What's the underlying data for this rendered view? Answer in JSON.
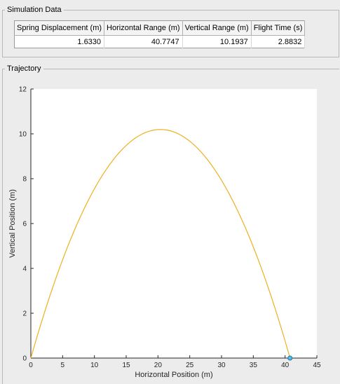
{
  "sim_panel": {
    "title": "Simulation Data"
  },
  "table": {
    "headers": [
      "Spring Displacement (m)",
      "Horizontal Range (m)",
      "Vertical Range (m)",
      "Flight Time (s)"
    ],
    "row": [
      "1.6330",
      "40.7747",
      "10.1937",
      "2.8832"
    ]
  },
  "traj_panel": {
    "title": "Trajectory"
  },
  "chart_data": {
    "type": "line",
    "xlabel": "Horizontal Position (m)",
    "ylabel": "Vertical Position (m)",
    "xlim": [
      0,
      45
    ],
    "ylim": [
      0,
      12
    ],
    "x_ticks": [
      0,
      5,
      10,
      15,
      20,
      25,
      30,
      35,
      40,
      45
    ],
    "y_ticks": [
      0,
      2,
      4,
      6,
      8,
      10,
      12
    ],
    "grid": false,
    "series": [
      {
        "color": "#edb120",
        "shape": "parabola",
        "range": 40.7747,
        "peak_height": 10.1937,
        "start": [
          0,
          0
        ]
      }
    ],
    "marker": {
      "x": 40.7747,
      "y": 0,
      "color": "#4dbeee"
    }
  }
}
